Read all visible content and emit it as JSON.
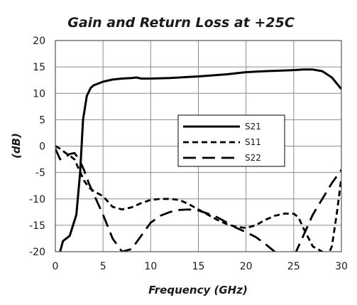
{
  "chart_data": {
    "type": "line",
    "title": "Gain and Return Loss at +25C",
    "xlabel": "Frequency (GHz)",
    "ylabel": "(dB)",
    "xlim": [
      0,
      30
    ],
    "ylim": [
      -20,
      20
    ],
    "xticks": [
      0,
      5,
      10,
      15,
      20,
      25,
      30
    ],
    "yticks": [
      -20,
      -15,
      -10,
      -5,
      0,
      5,
      10,
      15,
      20
    ],
    "grid": true,
    "legend_position": "center-right",
    "series": [
      {
        "name": "S21",
        "style": "solid",
        "color": "#000000",
        "x": [
          0.5,
          0.8,
          1.5,
          2.2,
          2.6,
          2.9,
          3.3,
          3.7,
          4.0,
          5,
          6,
          7,
          8,
          8.5,
          9,
          10,
          12,
          15,
          18,
          20,
          22,
          25,
          26,
          27,
          28,
          29,
          30
        ],
        "y": [
          -20,
          -18,
          -17,
          -13,
          -5,
          5,
          9.5,
          11,
          11.5,
          12.2,
          12.6,
          12.8,
          12.9,
          13.0,
          12.8,
          12.8,
          12.9,
          13.2,
          13.6,
          14.0,
          14.2,
          14.4,
          14.5,
          14.5,
          14.2,
          13.0,
          10.8
        ]
      },
      {
        "name": "S11",
        "style": "dashed",
        "color": "#000000",
        "x": [
          0,
          0.5,
          1,
          1.5,
          2,
          2.5,
          3,
          3.5,
          4,
          5,
          6,
          7,
          8,
          9,
          10,
          11,
          12,
          13,
          14,
          15,
          16,
          17,
          18,
          19,
          20,
          21,
          22,
          23,
          24,
          25,
          25.5,
          26,
          27,
          28,
          28.5,
          29,
          29.5,
          30
        ],
        "y": [
          0,
          -0.5,
          -1.2,
          -1.8,
          -2.5,
          -4.5,
          -6.5,
          -7.8,
          -8.5,
          -9.5,
          -11.5,
          -12.0,
          -11.6,
          -10.8,
          -10.2,
          -10.0,
          -10.0,
          -10.2,
          -11.0,
          -12.0,
          -13.0,
          -14.0,
          -14.8,
          -15.3,
          -15.5,
          -15.0,
          -14.0,
          -13.2,
          -12.8,
          -12.8,
          -13.5,
          -15.5,
          -19.0,
          -20.0,
          -21.0,
          -19.0,
          -13.0,
          -6.0
        ]
      },
      {
        "name": "S22",
        "style": "long-dashed",
        "color": "#000000",
        "x": [
          0,
          0.5,
          1,
          1.5,
          2,
          2.5,
          3,
          3.5,
          4,
          5,
          6,
          7,
          8,
          9,
          10,
          11,
          12,
          13,
          14,
          15,
          16,
          17,
          18,
          19,
          20,
          21,
          22,
          23,
          24,
          25,
          26,
          27,
          28,
          29,
          30
        ],
        "y": [
          -0.5,
          -2.5,
          -2.2,
          -1.5,
          -1.3,
          -2.5,
          -4.5,
          -7.0,
          -9.0,
          -13.0,
          -17.5,
          -20.0,
          -19.5,
          -17.0,
          -14.5,
          -13.2,
          -12.5,
          -12.1,
          -12.0,
          -12.2,
          -12.8,
          -13.5,
          -14.5,
          -15.5,
          -16.3,
          -17.2,
          -18.5,
          -20.0,
          -22.0,
          -21.0,
          -17.0,
          -13.0,
          -10.0,
          -7.0,
          -4.5
        ]
      }
    ]
  }
}
